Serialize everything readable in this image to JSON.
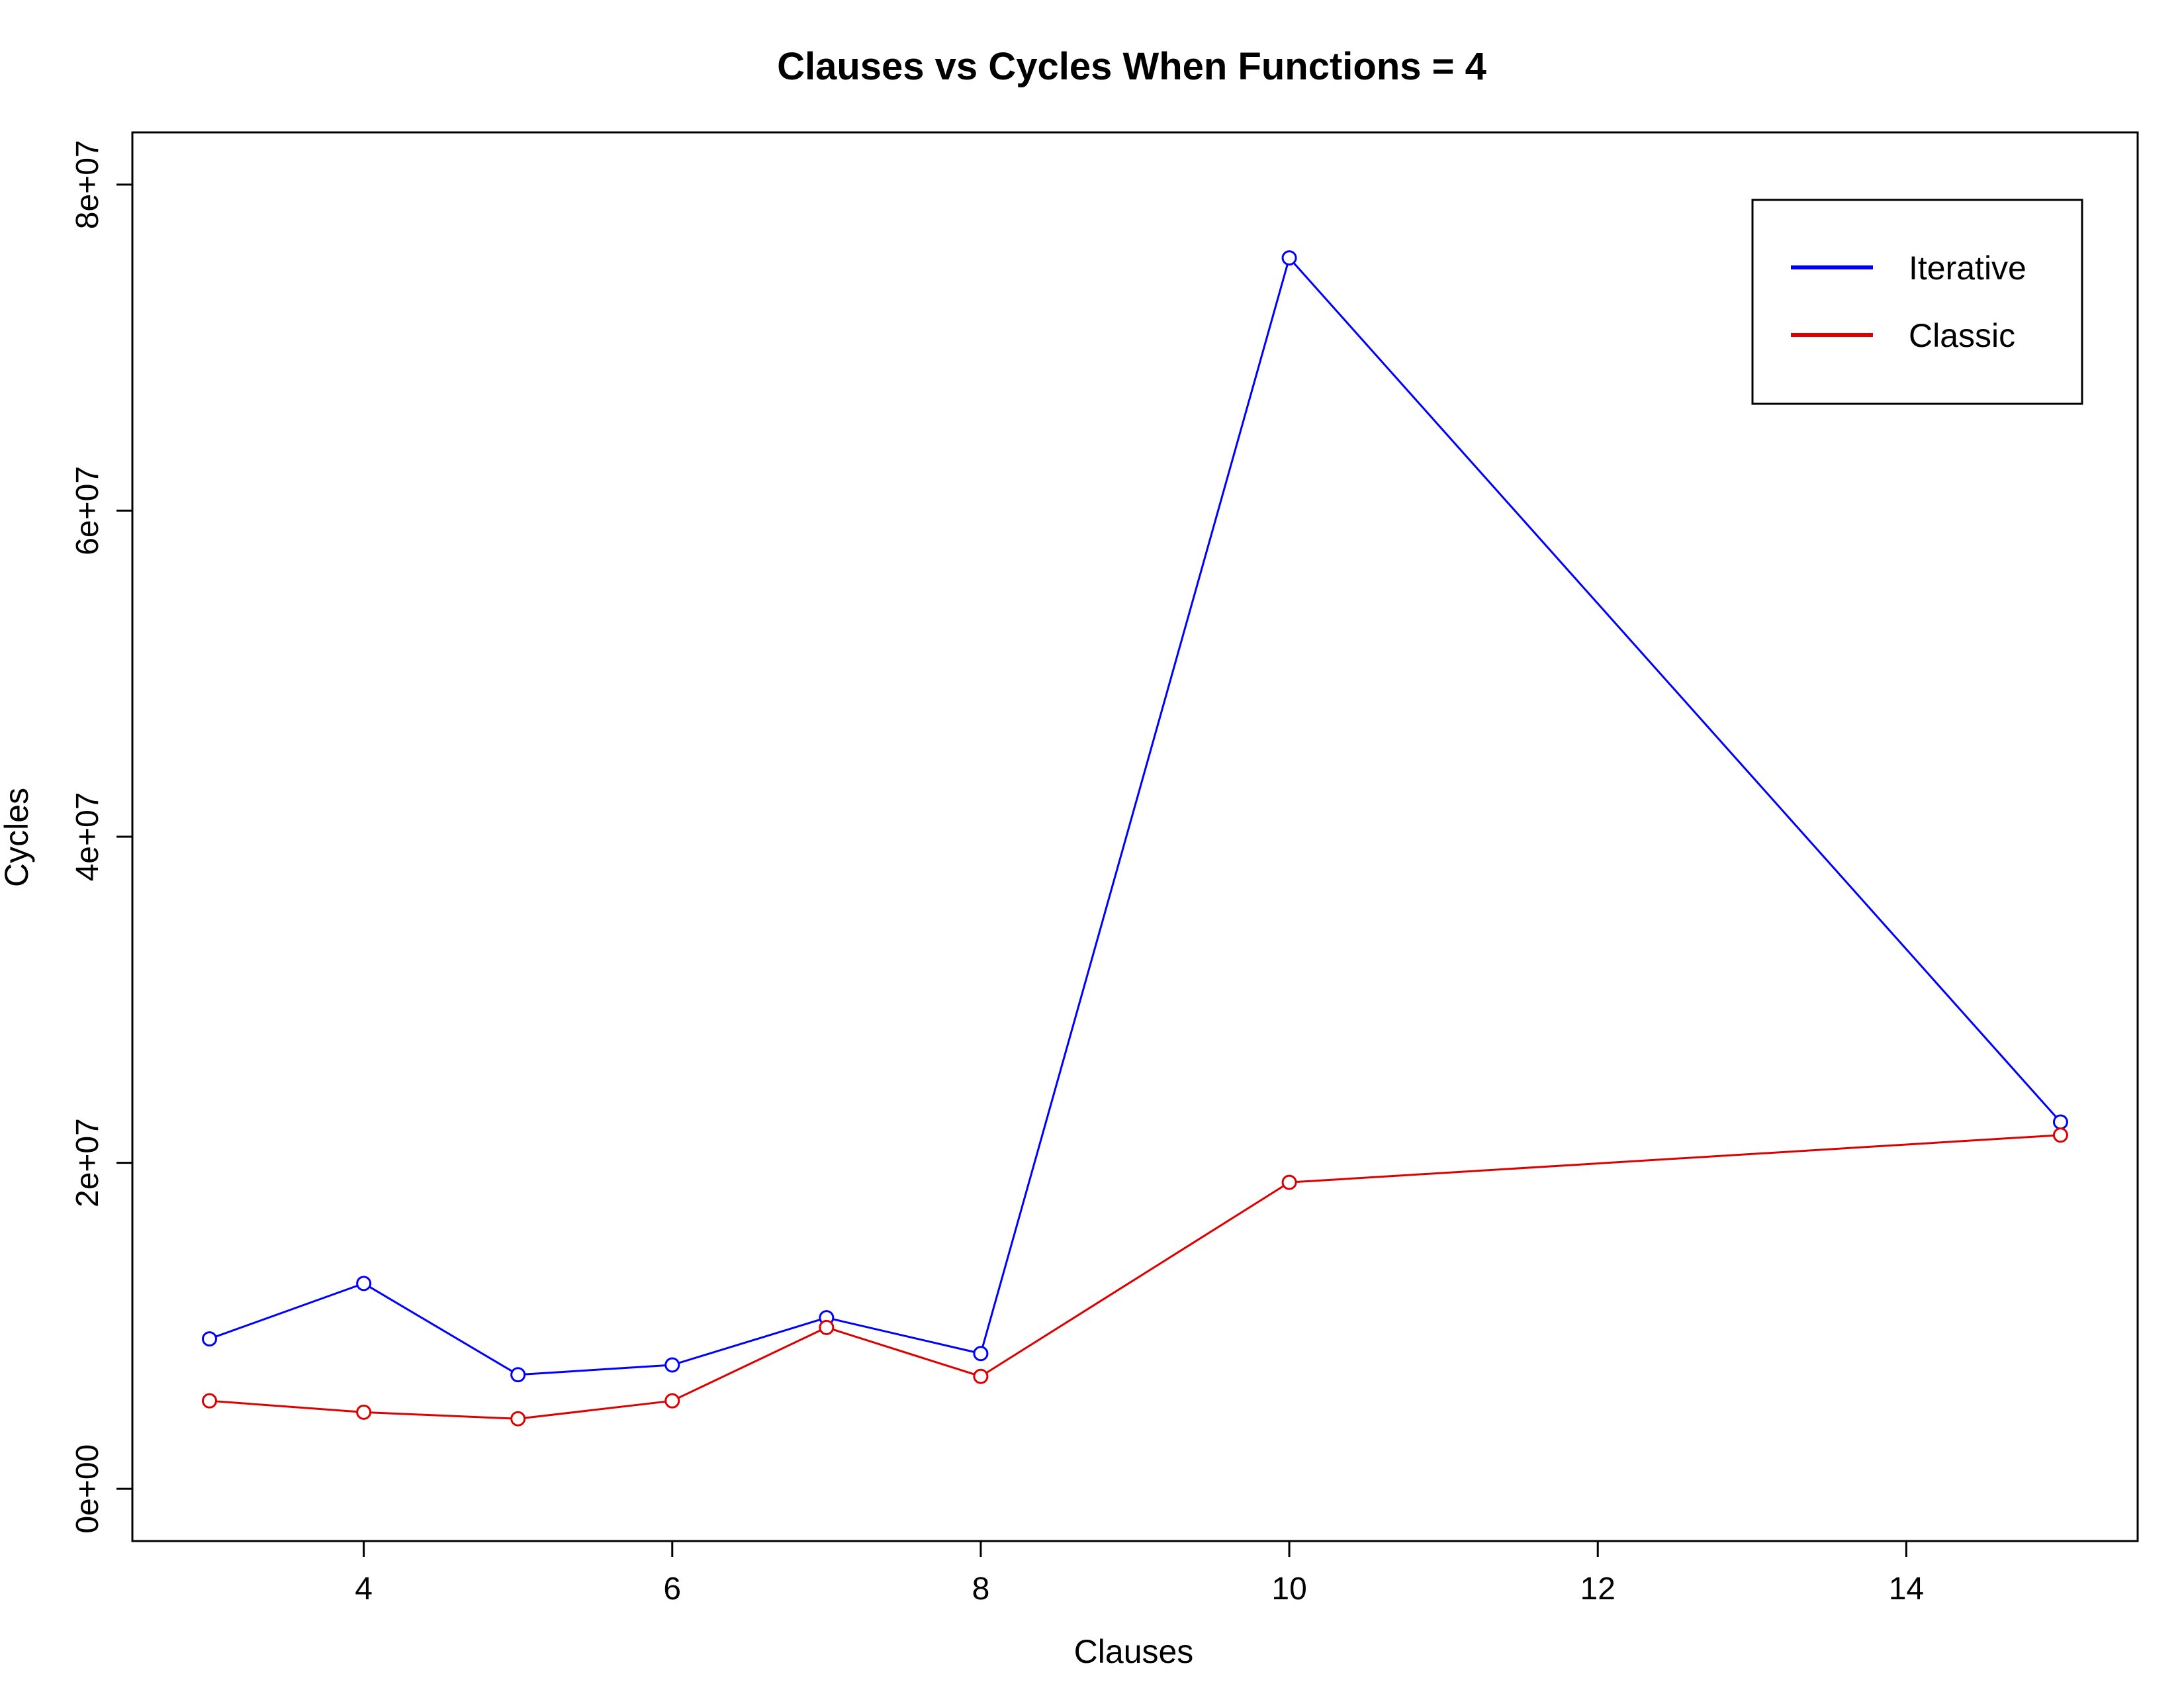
{
  "chart_data": {
    "type": "line",
    "title": "Clauses vs Cycles When Functions = 4",
    "xlabel": "Clauses",
    "ylabel": "Cycles",
    "xlim": [
      2.5,
      15.5
    ],
    "ylim": [
      -3200000,
      83200000
    ],
    "x_ticks": [
      4,
      6,
      8,
      10,
      12,
      14
    ],
    "x_tick_labels": [
      "4",
      "6",
      "8",
      "10",
      "12",
      "14"
    ],
    "y_ticks": [
      0,
      20000000,
      40000000,
      60000000,
      80000000
    ],
    "y_tick_labels": [
      "0e+00",
      "2e+07",
      "4e+07",
      "6e+07",
      "8e+07"
    ],
    "x": [
      3,
      4,
      5,
      6,
      7,
      8,
      10,
      15
    ],
    "series": [
      {
        "name": "Iterative",
        "color": "#0000ff",
        "values": [
          9200000,
          12600000,
          7000000,
          7600000,
          10500000,
          8300000,
          75500000,
          22500000
        ]
      },
      {
        "name": "Classic",
        "color": "#dd0000",
        "values": [
          5400000,
          4700000,
          4300000,
          5400000,
          9900000,
          6900000,
          18800000,
          21700000
        ]
      }
    ],
    "markers": "open-circle",
    "grid": false,
    "legend_position": "top-right"
  }
}
